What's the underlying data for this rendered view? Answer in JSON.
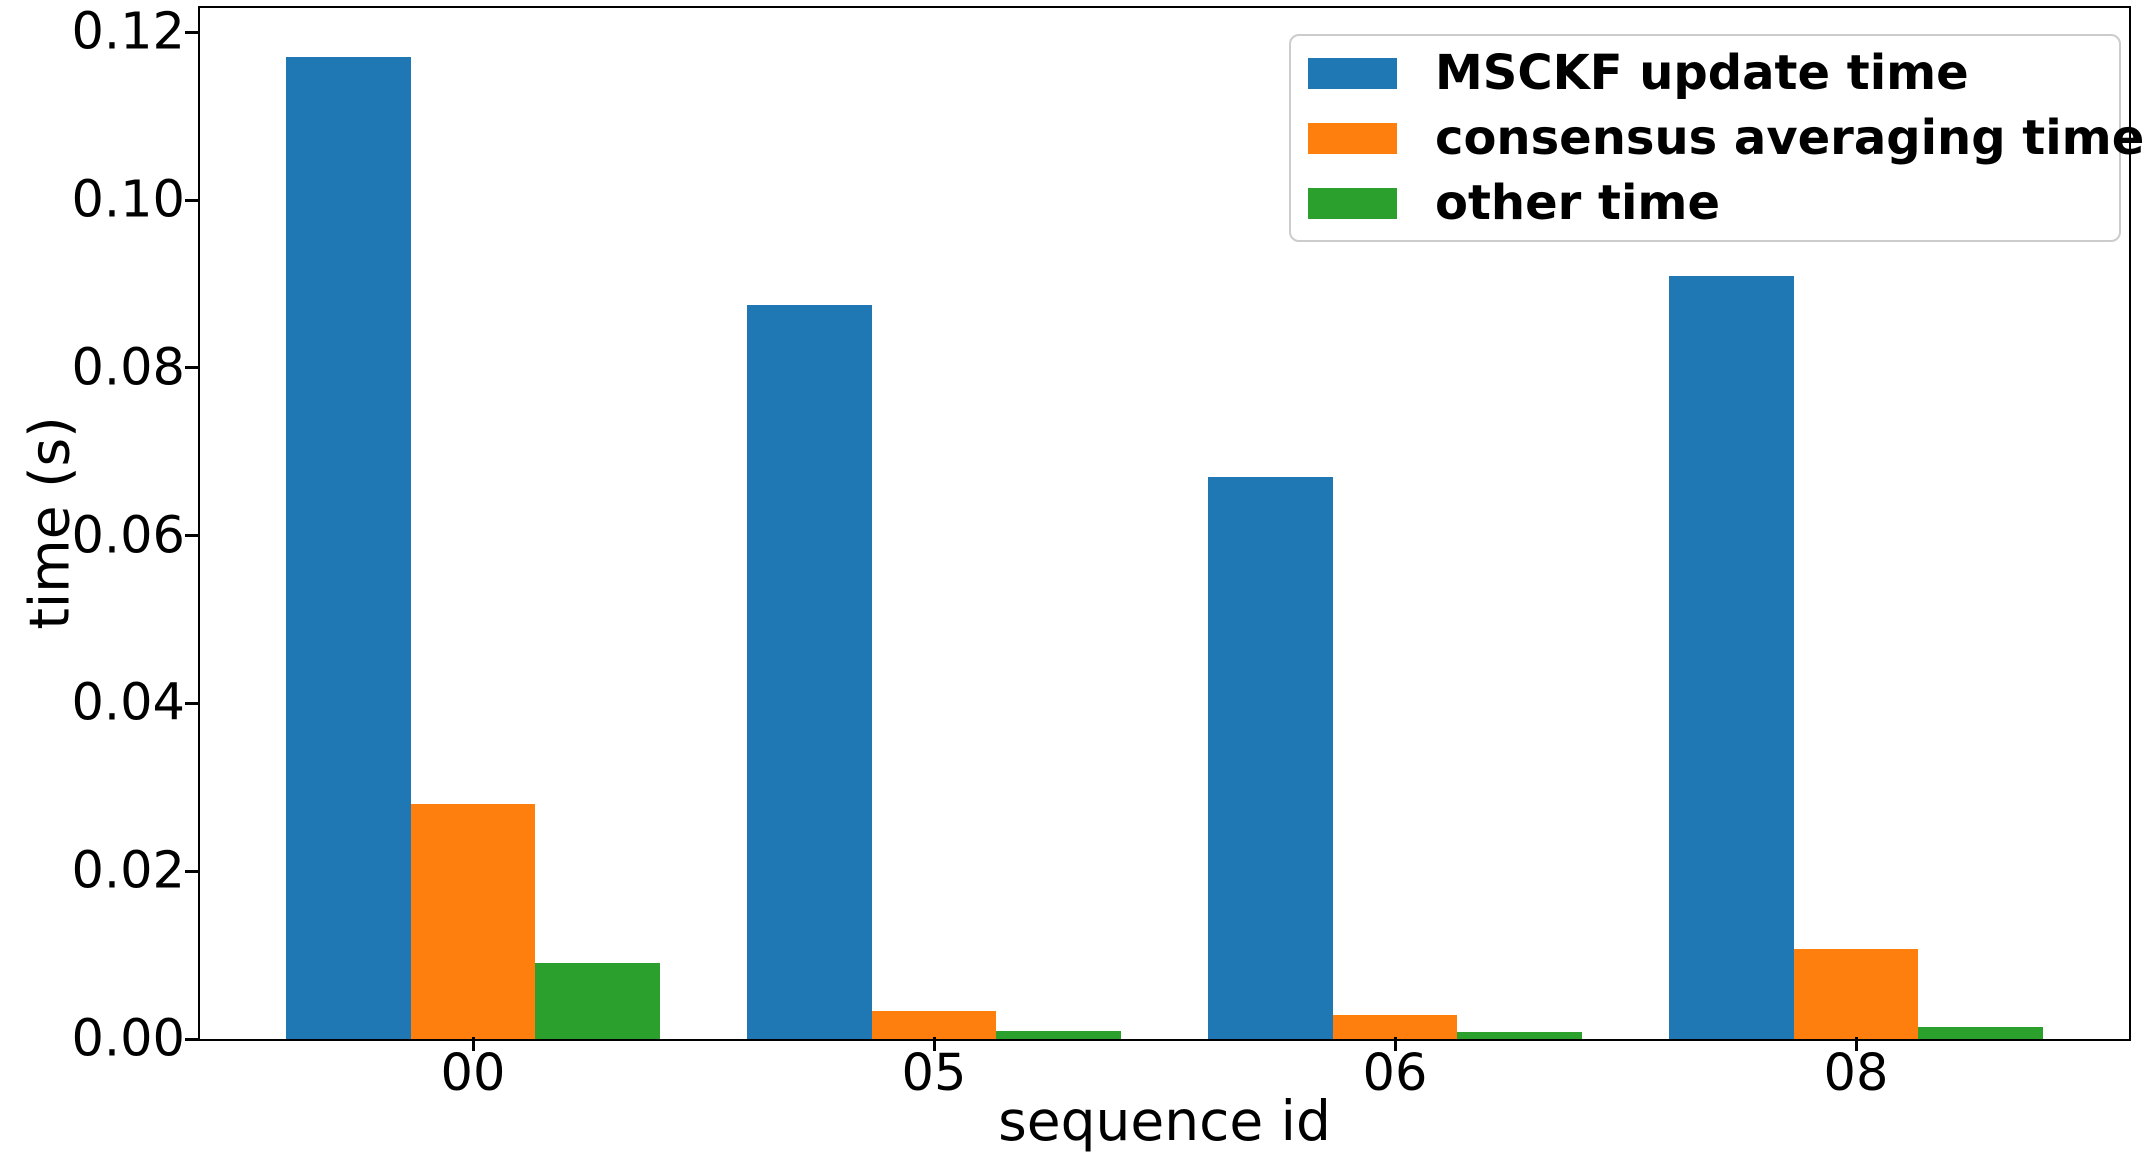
{
  "figure": {
    "background": "#ffffff",
    "text_color": "#000000",
    "legend_border_color": "#cccccc"
  },
  "chart_data": {
    "type": "bar",
    "title": "",
    "xlabel": "sequence id",
    "ylabel": "time (s)",
    "categories": [
      "00",
      "05",
      "06",
      "08"
    ],
    "series": [
      {
        "name": "MSCKF update time",
        "color": "#1f77b4",
        "values": [
          0.117,
          0.0875,
          0.067,
          0.091
        ]
      },
      {
        "name": "consensus averaging time",
        "color": "#ff7f0e",
        "values": [
          0.028,
          0.0033,
          0.0029,
          0.0107
        ]
      },
      {
        "name": "other time",
        "color": "#2ca02c",
        "values": [
          0.009,
          0.001,
          0.0008,
          0.0014
        ]
      }
    ],
    "ylim": [
      0,
      0.1229
    ],
    "yticks": [
      0.0,
      0.02,
      0.04,
      0.06,
      0.08,
      0.1,
      0.12
    ],
    "ytick_labels": [
      "0.00",
      "0.02",
      "0.04",
      "0.06",
      "0.08",
      "0.10",
      "0.12"
    ],
    "xtick_labels": [
      "00",
      "05",
      "06",
      "08"
    ],
    "grid": false,
    "legend_position": "upper right",
    "bar_width_units": 0.27
  }
}
